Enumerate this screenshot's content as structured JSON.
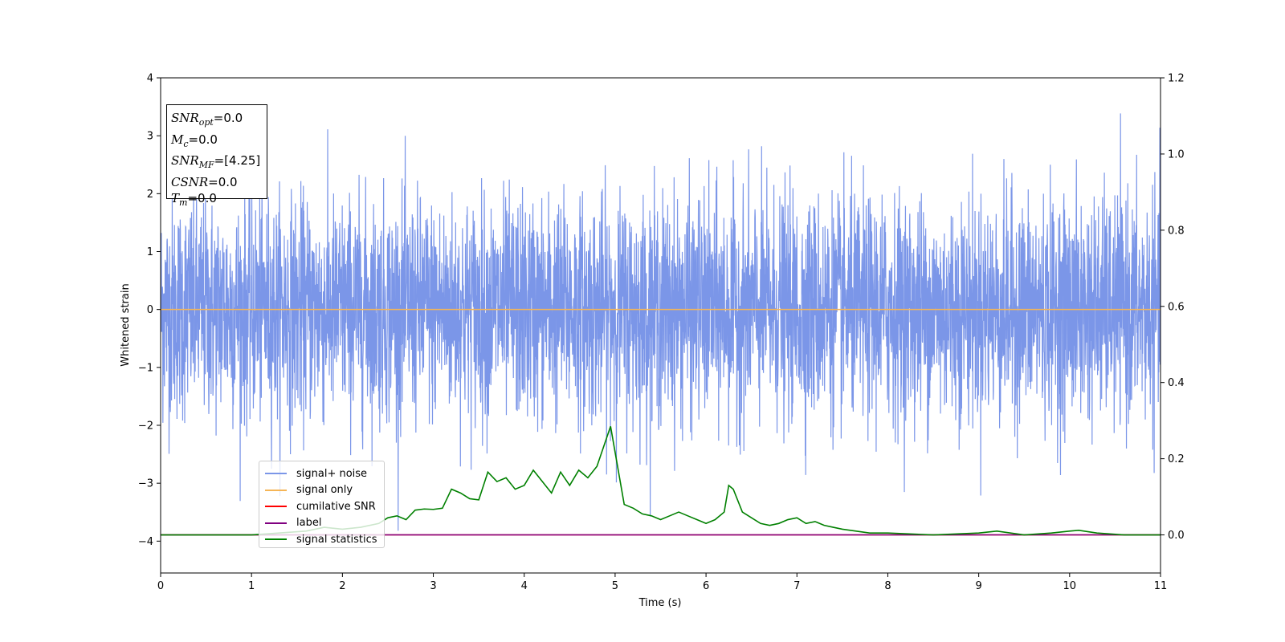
{
  "chart_data": {
    "type": "line",
    "xlabel": "Time (s)",
    "ylabel": "Whitened strain",
    "xlim": [
      0,
      11
    ],
    "ylim": [
      -4.55,
      4.0
    ],
    "y2lim": [
      -0.1,
      1.2
    ],
    "x_ticks": [
      "0",
      "1",
      "2",
      "3",
      "4",
      "5",
      "6",
      "7",
      "8",
      "9",
      "10",
      "11"
    ],
    "y_ticks": [
      "4",
      "3",
      "2",
      "1",
      "0",
      "−1",
      "−2",
      "−3",
      "−4"
    ],
    "y2_ticks": [
      "1.2",
      "1.0",
      "0.8",
      "0.6",
      "0.4",
      "0.2",
      "0.0"
    ],
    "legend_position": "lower-left",
    "info_box": {
      "snr_opt": "=0.0",
      "mc": "=0.0",
      "snr_mf": "=[4.25]",
      "csnr": "=0.0",
      "tm": "=0.0"
    },
    "series": [
      {
        "name": "signal+ noise",
        "color": "#7b96e8",
        "note": "whitened noise, amplitude ~±2.5, peaks to ~3.6",
        "axis": "left"
      },
      {
        "name": "signal only",
        "color": "#f5b556",
        "values_constant": 0.0,
        "axis": "left"
      },
      {
        "name": "cumilative SNR",
        "color": "#ff0000",
        "values_constant": 0.0,
        "axis": "right"
      },
      {
        "name": "label",
        "color": "#800080",
        "values_constant": 0.0,
        "axis": "right"
      },
      {
        "name": "signal statistics",
        "color": "#008000",
        "axis": "right",
        "x": [
          0,
          0.5,
          1,
          1.3,
          1.6,
          1.8,
          2.0,
          2.2,
          2.4,
          2.5,
          2.6,
          2.7,
          2.8,
          2.9,
          3.0,
          3.1,
          3.2,
          3.3,
          3.4,
          3.5,
          3.6,
          3.7,
          3.8,
          3.9,
          4.0,
          4.1,
          4.2,
          4.3,
          4.4,
          4.5,
          4.6,
          4.7,
          4.8,
          4.9,
          4.95,
          5.1,
          5.2,
          5.3,
          5.4,
          5.5,
          5.6,
          5.7,
          5.8,
          5.9,
          6.0,
          6.1,
          6.2,
          6.25,
          6.3,
          6.4,
          6.5,
          6.6,
          6.7,
          6.8,
          6.9,
          7.0,
          7.1,
          7.2,
          7.3,
          7.4,
          7.5,
          7.8,
          8.0,
          8.5,
          9.0,
          9.2,
          9.5,
          9.8,
          10.0,
          10.1,
          10.3,
          10.6,
          11.0
        ],
        "values": [
          0.0,
          0.0,
          0.0,
          0.005,
          0.01,
          0.02,
          0.015,
          0.02,
          0.03,
          0.045,
          0.05,
          0.04,
          0.065,
          0.068,
          0.067,
          0.07,
          0.12,
          0.11,
          0.095,
          0.092,
          0.165,
          0.14,
          0.15,
          0.12,
          0.13,
          0.17,
          0.14,
          0.11,
          0.165,
          0.13,
          0.17,
          0.15,
          0.18,
          0.25,
          0.285,
          0.08,
          0.07,
          0.055,
          0.05,
          0.04,
          0.05,
          0.06,
          0.05,
          0.04,
          0.03,
          0.04,
          0.06,
          0.13,
          0.12,
          0.06,
          0.045,
          0.03,
          0.025,
          0.03,
          0.04,
          0.045,
          0.03,
          0.035,
          0.025,
          0.02,
          0.015,
          0.005,
          0.005,
          0.0,
          0.005,
          0.01,
          0.0,
          0.005,
          0.01,
          0.012,
          0.005,
          0.0,
          0.0
        ]
      }
    ]
  }
}
